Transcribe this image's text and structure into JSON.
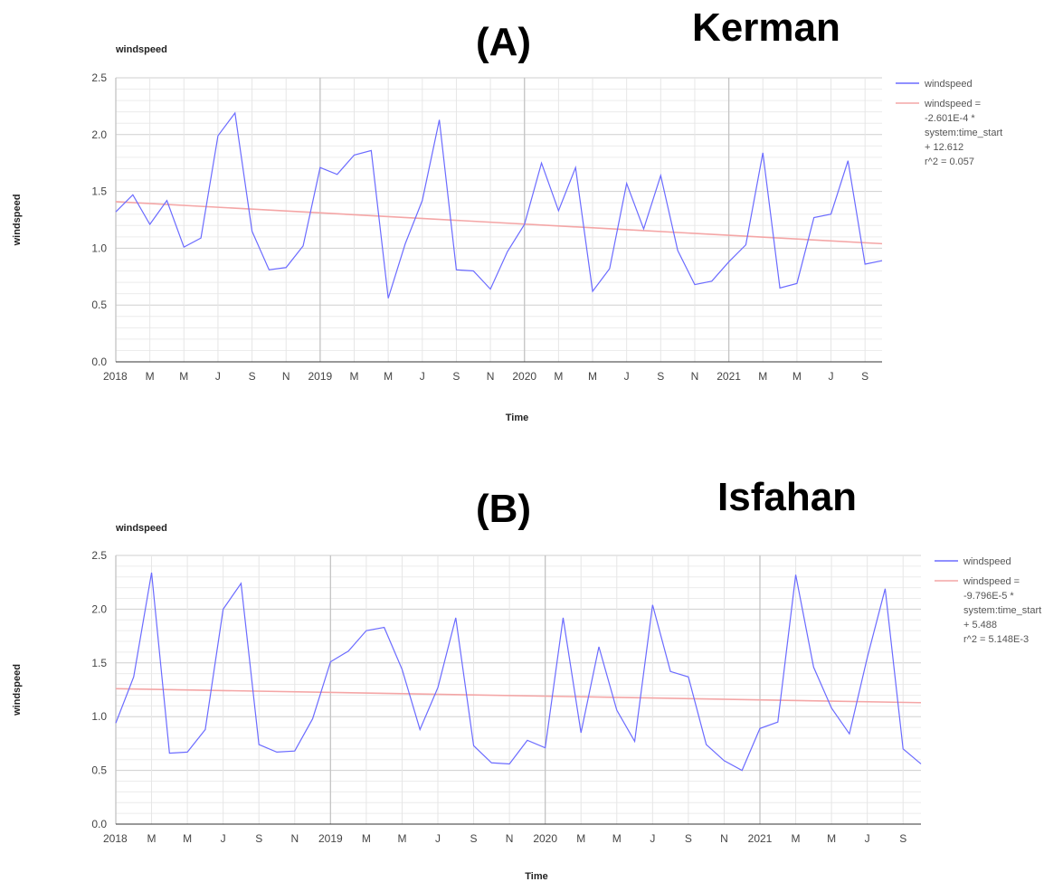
{
  "panels": [
    {
      "letter": "(A)",
      "city": "Kerman"
    },
    {
      "letter": "(B)",
      "city": "Isfahan"
    }
  ],
  "colors": {
    "series": "#6b6bff",
    "trend": "#f4a6a6",
    "grid": "#e0e0e0",
    "grid_major": "#c8c8c8"
  },
  "chart_data": [
    {
      "type": "line",
      "title": "windspeed",
      "xlabel": "Time",
      "ylabel": "windspeed",
      "ylim": [
        0,
        2.5
      ],
      "y_ticks": [
        "0.0",
        "0.5",
        "1.0",
        "1.5",
        "2.0",
        "2.5"
      ],
      "x_tick_labels": [
        "2018",
        "M",
        "M",
        "J",
        "S",
        "N",
        "2019",
        "M",
        "M",
        "J",
        "S",
        "N",
        "2020",
        "M",
        "M",
        "J",
        "S",
        "N",
        "2021",
        "M",
        "M",
        "J",
        "S"
      ],
      "grid": true,
      "legend_position": "right",
      "series": [
        {
          "name": "windspeed",
          "x_months": [
            0,
            1,
            2,
            3,
            4,
            5,
            6,
            7,
            8,
            9,
            10,
            11,
            12,
            13,
            14,
            15,
            16,
            17,
            18,
            19,
            20,
            21,
            22,
            23,
            24,
            25,
            26,
            27,
            28,
            29,
            30,
            31,
            32,
            33,
            34,
            35,
            36,
            37,
            38,
            39,
            40,
            41,
            42,
            43,
            44,
            45
          ],
          "values": [
            1.32,
            1.47,
            1.21,
            1.42,
            1.01,
            1.09,
            1.99,
            2.19,
            1.15,
            0.81,
            0.83,
            1.02,
            1.71,
            1.65,
            1.82,
            1.86,
            0.56,
            1.04,
            1.42,
            2.13,
            0.81,
            0.8,
            0.64,
            0.97,
            1.21,
            1.75,
            1.33,
            1.71,
            0.62,
            0.82,
            1.57,
            1.17,
            1.64,
            0.98,
            0.68,
            0.71,
            0.88,
            1.03,
            1.84,
            0.65,
            0.69,
            1.27,
            1.3,
            1.77,
            0.86,
            0.89
          ]
        }
      ],
      "trend": {
        "from": 1.41,
        "to": 1.04
      },
      "legend": {
        "series": "windspeed",
        "trend_lines": [
          "windspeed =",
          "-2.601E-4 *",
          "system:time_start",
          "+ 12.612",
          "r^2 = 0.057"
        ]
      }
    },
    {
      "type": "line",
      "title": "windspeed",
      "xlabel": "Time",
      "ylabel": "windspeed",
      "ylim": [
        0,
        2.5
      ],
      "y_ticks": [
        "0.0",
        "0.5",
        "1.0",
        "1.5",
        "2.0",
        "2.5"
      ],
      "x_tick_labels": [
        "2018",
        "M",
        "M",
        "J",
        "S",
        "N",
        "2019",
        "M",
        "M",
        "J",
        "S",
        "N",
        "2020",
        "M",
        "M",
        "J",
        "S",
        "N",
        "2021",
        "M",
        "M",
        "J",
        "S"
      ],
      "grid": true,
      "legend_position": "right",
      "series": [
        {
          "name": "windspeed",
          "x_months": [
            0,
            1,
            2,
            3,
            4,
            5,
            6,
            7,
            8,
            9,
            10,
            11,
            12,
            13,
            14,
            15,
            16,
            17,
            18,
            19,
            20,
            21,
            22,
            23,
            24,
            25,
            26,
            27,
            28,
            29,
            30,
            31,
            32,
            33,
            34,
            35,
            36,
            37,
            38,
            39,
            40,
            41,
            42,
            43,
            44,
            45
          ],
          "values": [
            0.94,
            1.37,
            2.34,
            0.66,
            0.67,
            0.88,
            2.0,
            2.24,
            0.74,
            0.67,
            0.68,
            0.98,
            1.51,
            1.61,
            1.8,
            1.83,
            1.44,
            0.88,
            1.27,
            1.92,
            0.73,
            0.57,
            0.56,
            0.78,
            0.71,
            1.92,
            0.85,
            1.65,
            1.06,
            0.77,
            2.04,
            1.42,
            1.37,
            0.74,
            0.59,
            0.5,
            0.89,
            0.95,
            2.32,
            1.46,
            1.08,
            0.84,
            1.55,
            2.19,
            0.7,
            0.56
          ]
        }
      ],
      "trend": {
        "from": 1.26,
        "to": 1.13
      },
      "legend": {
        "series": "windspeed",
        "trend_lines": [
          "windspeed =",
          "-9.796E-5 *",
          "system:time_start",
          "+ 5.488",
          "r^2 = 5.148E-3"
        ]
      }
    }
  ]
}
